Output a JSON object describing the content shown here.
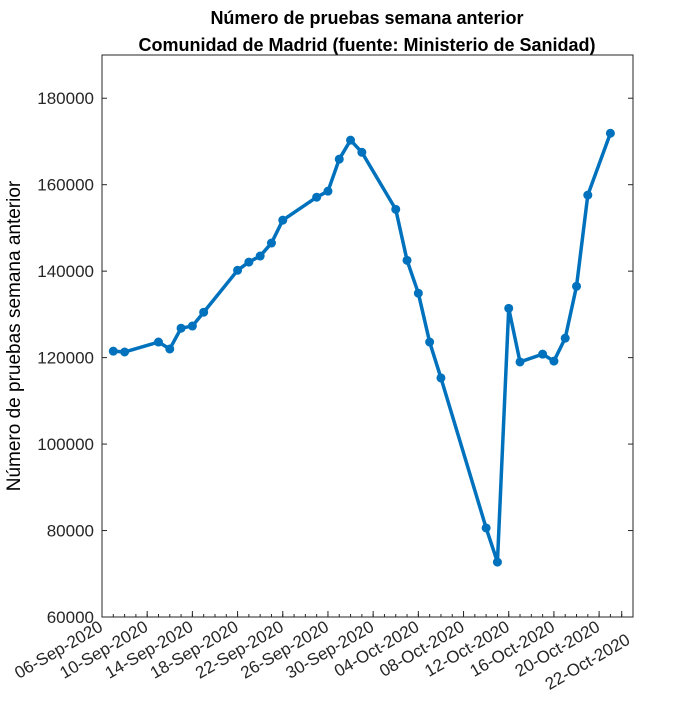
{
  "chart_data": {
    "type": "line",
    "title": [
      "Número de pruebas semana anterior",
      "Comunidad de Madrid (fuente: Ministerio de Sanidad)"
    ],
    "xlabel": "",
    "ylabel": "Número de pruebas semana anterior",
    "ylim": [
      60000,
      190000
    ],
    "xlim": [
      "2020-09-06",
      "2020-10-23"
    ],
    "yticks": [
      60000,
      80000,
      100000,
      120000,
      140000,
      160000,
      180000
    ],
    "xticks": [
      {
        "date": "2020-09-06",
        "label": "06-Sep-2020"
      },
      {
        "date": "2020-09-10",
        "label": "10-Sep-2020"
      },
      {
        "date": "2020-09-14",
        "label": "14-Sep-2020"
      },
      {
        "date": "2020-09-18",
        "label": "18-Sep-2020"
      },
      {
        "date": "2020-09-22",
        "label": "22-Sep-2020"
      },
      {
        "date": "2020-09-26",
        "label": "26-Sep-2020"
      },
      {
        "date": "2020-09-30",
        "label": "30-Sep-2020"
      },
      {
        "date": "2020-10-04",
        "label": "04-Oct-2020"
      },
      {
        "date": "2020-10-08",
        "label": "08-Oct-2020"
      },
      {
        "date": "2020-10-12",
        "label": "12-Oct-2020"
      },
      {
        "date": "2020-10-16",
        "label": "16-Oct-2020"
      },
      {
        "date": "2020-10-20",
        "label": "20-Oct-2020"
      },
      {
        "date": "2020-10-22",
        "label": "22-Oct-2020"
      }
    ],
    "grid": false,
    "color": "#0072BD",
    "series": [
      {
        "name": "Número de pruebas semana anterior",
        "x": [
          "2020-09-07",
          "2020-09-08",
          "2020-09-11",
          "2020-09-12",
          "2020-09-13",
          "2020-09-14",
          "2020-09-15",
          "2020-09-18",
          "2020-09-19",
          "2020-09-20",
          "2020-09-21",
          "2020-09-22",
          "2020-09-25",
          "2020-09-26",
          "2020-09-27",
          "2020-09-28",
          "2020-09-29",
          "2020-10-02",
          "2020-10-03",
          "2020-10-04",
          "2020-10-05",
          "2020-10-06",
          "2020-10-10",
          "2020-10-11",
          "2020-10-12",
          "2020-10-13",
          "2020-10-15",
          "2020-10-16",
          "2020-10-17",
          "2020-10-18",
          "2020-10-19",
          "2020-10-21"
        ],
        "values": [
          121500,
          121300,
          123600,
          122000,
          126800,
          127300,
          130500,
          140200,
          142100,
          143500,
          146500,
          151800,
          157100,
          158500,
          165900,
          170300,
          167500,
          154300,
          142500,
          134900,
          123600,
          115300,
          80600,
          72700,
          131400,
          119000,
          120800,
          119200,
          124500,
          136500,
          157600,
          171900
        ]
      }
    ]
  }
}
